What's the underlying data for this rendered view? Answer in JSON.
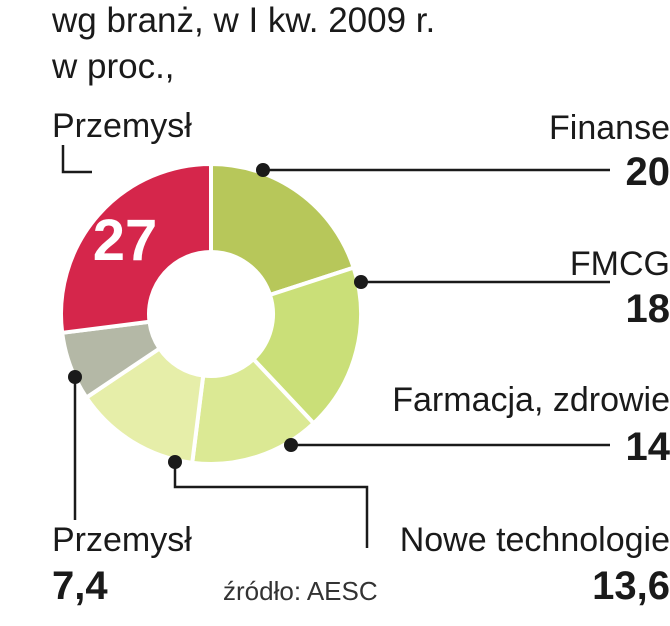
{
  "subtitle_line1": "wg branż, w I kw. 2009 r.",
  "subtitle_line2": "w proc.,",
  "source": "źródło: AESC",
  "colors": {
    "przemysl": "#d5264b",
    "finanse": "#b7c75a",
    "fmcg": "#cadf78",
    "farmacja": "#dbe994",
    "nowe_technologie": "#e6eea9",
    "przemysl_2": "#b4b8a6",
    "leader": "#1a1a1a"
  },
  "chart_data": {
    "type": "pie",
    "variant": "donut",
    "slices": [
      {
        "label": "Finanse",
        "value": 20,
        "display": "20"
      },
      {
        "label": "FMCG",
        "value": 18,
        "display": "18"
      },
      {
        "label": "Farmacja, zdrowie",
        "value": 14,
        "display": "14"
      },
      {
        "label": "Nowe technologie",
        "value": 13.6,
        "display": "13,6"
      },
      {
        "label": "Przemysł",
        "value": 7.4,
        "display": "7,4"
      },
      {
        "label": "Przemysł",
        "value": 27,
        "display": "27"
      }
    ]
  }
}
